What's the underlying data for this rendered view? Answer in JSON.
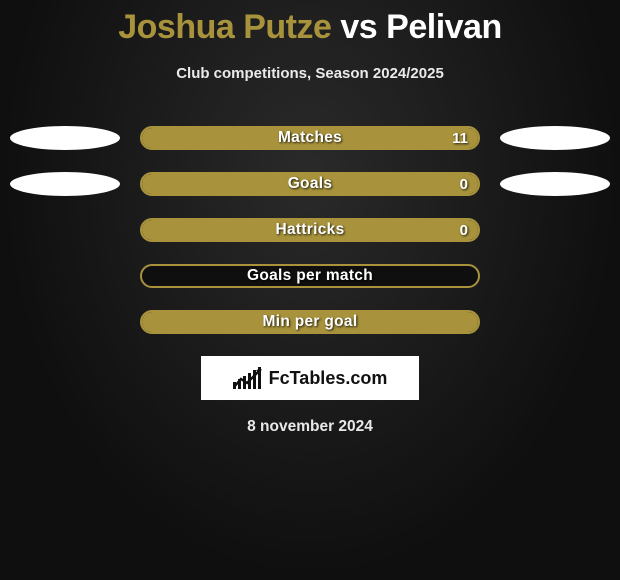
{
  "header": {
    "player1": "Joshua Putze",
    "vs": "vs",
    "player2": "Pelivan",
    "subtitle": "Club competitions, Season 2024/2025"
  },
  "chart": {
    "bar_color": "#a8933c",
    "border_color": "#a8933c",
    "text_color": "#ffffff",
    "rows": [
      {
        "label": "Matches",
        "value": "11",
        "fill_pct": 100,
        "show_left_ellipse": true,
        "show_right_ellipse": true
      },
      {
        "label": "Goals",
        "value": "0",
        "fill_pct": 100,
        "show_left_ellipse": true,
        "show_right_ellipse": true
      },
      {
        "label": "Hattricks",
        "value": "0",
        "fill_pct": 100,
        "show_left_ellipse": false,
        "show_right_ellipse": false
      },
      {
        "label": "Goals per match",
        "value": "",
        "fill_pct": 0,
        "show_left_ellipse": false,
        "show_right_ellipse": false
      },
      {
        "label": "Min per goal",
        "value": "",
        "fill_pct": 100,
        "show_left_ellipse": false,
        "show_right_ellipse": false
      }
    ]
  },
  "logo": {
    "text": "FcTables.com"
  },
  "footer": {
    "date": "8 november 2024"
  }
}
